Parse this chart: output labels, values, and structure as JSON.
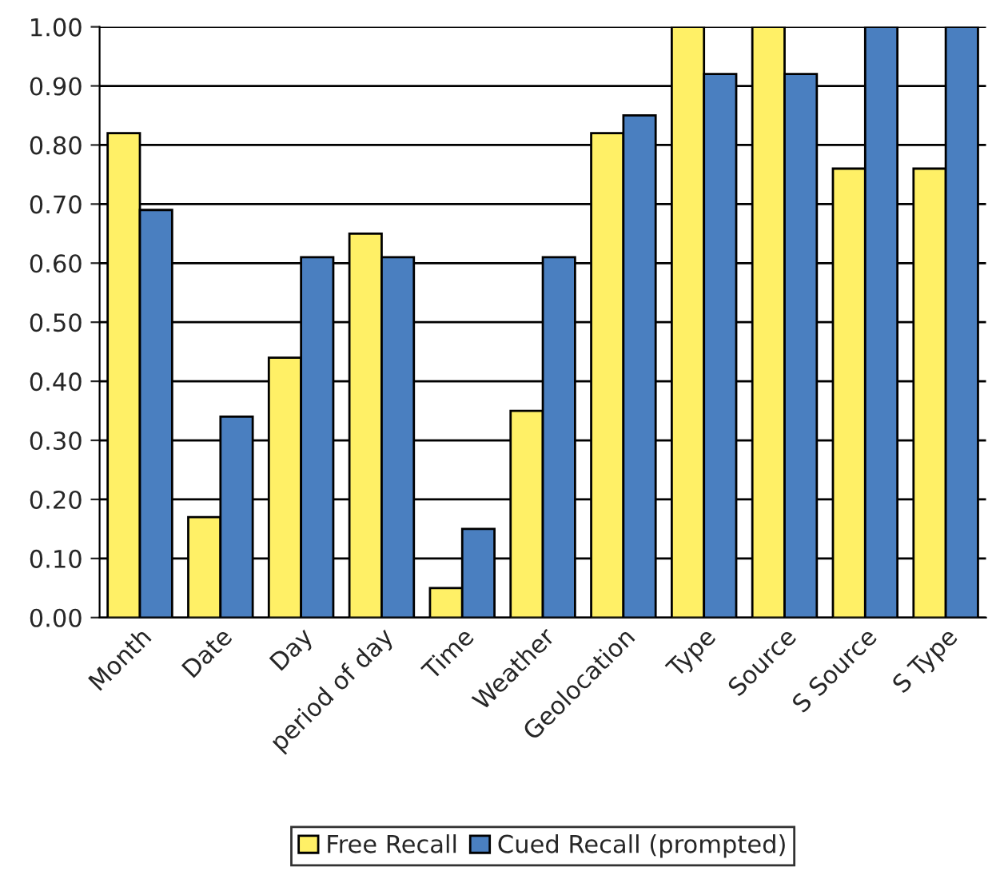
{
  "chart_data": {
    "type": "bar",
    "categories": [
      "Month",
      "Date",
      "Day",
      "period of day",
      "Time",
      "Weather",
      "Geolocation",
      "Type",
      "Source",
      "S Source",
      "S Type"
    ],
    "series": [
      {
        "name": "Free Recall",
        "color": "#fff066",
        "values": [
          0.82,
          0.17,
          0.44,
          0.65,
          0.05,
          0.35,
          0.82,
          1.0,
          1.0,
          0.76,
          0.76
        ]
      },
      {
        "name": "Cued Recall (prompted)",
        "color": "#4a7fc0",
        "values": [
          0.69,
          0.34,
          0.61,
          0.61,
          0.15,
          0.61,
          0.85,
          0.92,
          0.92,
          1.0,
          1.0
        ]
      }
    ],
    "ylim": [
      0,
      1.0
    ],
    "yticks": [
      {
        "value": 0,
        "label": "0.00"
      },
      {
        "value": 0.1,
        "label": "0.10"
      },
      {
        "value": 0.2,
        "label": "0.20"
      },
      {
        "value": 0.3,
        "label": "0.30"
      },
      {
        "value": 0.4,
        "label": "0.40"
      },
      {
        "value": 0.5,
        "label": "0.50"
      },
      {
        "value": 0.6,
        "label": "0.60"
      },
      {
        "value": 0.7,
        "label": "0.70"
      },
      {
        "value": 0.8,
        "label": "0.80"
      },
      {
        "value": 0.9,
        "label": "0.90"
      },
      {
        "value": 1.0,
        "label": "1.00"
      }
    ],
    "grid": "y",
    "legend": "bottom"
  }
}
